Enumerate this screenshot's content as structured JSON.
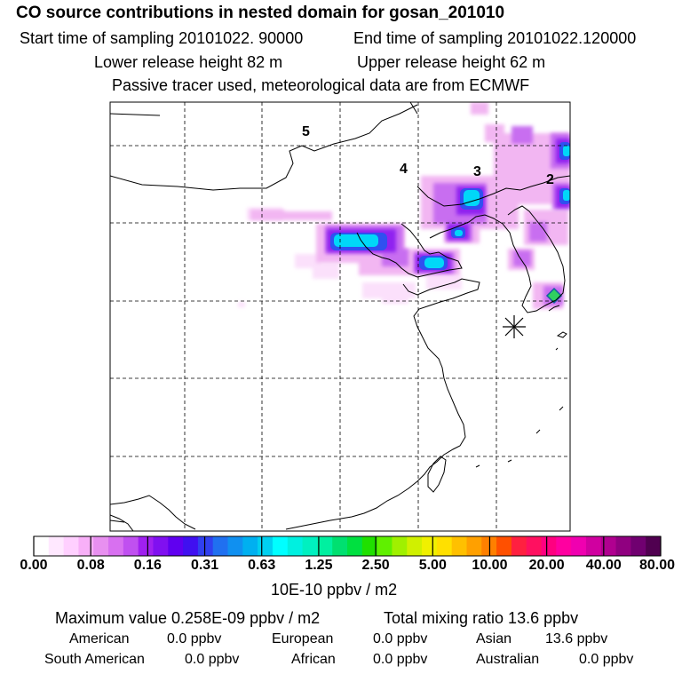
{
  "header": {
    "title": "CO  source contributions in nested domain for gosan_201010",
    "start_label": "Start time of sampling 20101022. 90000",
    "end_label": "End time of sampling 20101022.120000",
    "lower_label": "Lower release height   82 m",
    "upper_label": "Upper release height   62 m",
    "note": "Passive tracer used, meteorological data are from ECMWF"
  },
  "map": {
    "region_labels": [
      "5",
      "4",
      "3",
      "2"
    ],
    "receptor_marker": "asterisk-marker",
    "colors": {
      "coast": "#000000",
      "grid": "#000000"
    }
  },
  "colorbar": {
    "labels": [
      "0.00",
      "0.08",
      "0.16",
      "0.31",
      "0.63",
      "1.25",
      "2.50",
      "5.00",
      "10.00",
      "20.00",
      "40.00",
      "80.00"
    ],
    "colors": [
      "#ffffff",
      "#ffe8ff",
      "#ffd0ff",
      "#f8b0f8",
      "#e890f0",
      "#d870f0",
      "#c050f0",
      "#a020f0",
      "#8010f0",
      "#6000f0",
      "#4010f0",
      "#3040f0",
      "#2070f0",
      "#1090f0",
      "#00b0f0",
      "#00d0f0",
      "#00ffff",
      "#00f0e0",
      "#00f0c0",
      "#00f0a0",
      "#00e070",
      "#00e040",
      "#20e000",
      "#60f000",
      "#a0f000",
      "#d0f000",
      "#f0f000",
      "#ffe000",
      "#ffc000",
      "#ffa000",
      "#ff8000",
      "#ff5000",
      "#ff2040",
      "#ff1060",
      "#ff0080",
      "#ff00a0",
      "#f000b0",
      "#d000a0",
      "#b00090",
      "#900080",
      "#700070",
      "#500050"
    ],
    "units": "10E-10 ppbv / m2"
  },
  "footer": {
    "max_value": "Maximum value  0.258E-09 ppbv / m2",
    "total_mixing": "Total mixing ratio       13.6 ppbv",
    "american_label": "American",
    "american_value": "0.0 ppbv",
    "european_label": "European",
    "european_value": "0.0 ppbv",
    "asian_label": "Asian",
    "asian_value": "13.6 ppbv",
    "south_american_label": "South American",
    "south_american_value": "0.0 ppbv",
    "african_label": "African",
    "african_value": "0.0 ppbv",
    "australian_label": "Australian",
    "australian_value": "0.0 ppbv"
  }
}
